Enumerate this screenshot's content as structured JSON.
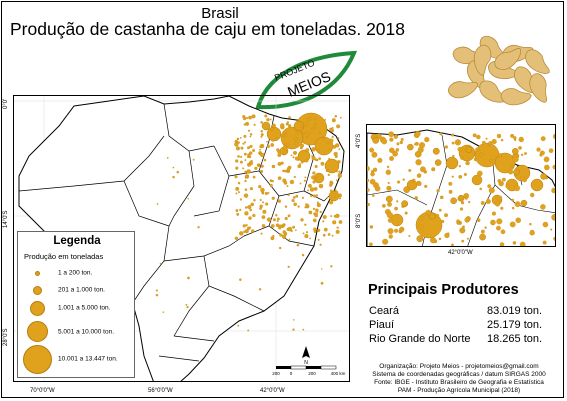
{
  "title": {
    "top": "Brasil",
    "main": "Produção de castanha de caju em toneladas. 2018"
  },
  "logo": {
    "line1": "PROJETO",
    "line2": "MEIOS"
  },
  "legend": {
    "title": "Legenda",
    "subtitle": "Produção em toneladas",
    "items": [
      {
        "label": "1 a 200 ton."
      },
      {
        "label": "201 a 1.000 ton."
      },
      {
        "label": "1.001 a 5.000 ton."
      },
      {
        "label": "5.001 a 10.000 ton."
      },
      {
        "label": "10.001 a 13.447 ton."
      }
    ]
  },
  "map_ticks": {
    "bottom": [
      "70°0'0\"W",
      "56°0'0\"W",
      "42°0'0\"W"
    ],
    "left": [
      "0°0'",
      "14°0'S",
      "28°0'S"
    ]
  },
  "inset_ticks": {
    "bottom": [
      "42°0'0\"W"
    ],
    "left": [
      "4°0'S",
      "8°0'S"
    ]
  },
  "scale_bar": {
    "labels": [
      "200",
      "0",
      "200",
      "400 km"
    ],
    "north": "N"
  },
  "producers": {
    "title": "Principais Produtores",
    "rows": [
      {
        "name": "Ceará",
        "value": "83.019 ton."
      },
      {
        "name": "Piauí",
        "value": "25.179 ton."
      },
      {
        "name": "Rio Grande do Norte",
        "value": "18.265 ton."
      }
    ]
  },
  "credits": [
    "Organização: Projeto Meios - projetomeios@gmail.com",
    "Sistema de coordenadas geográficas / datum SIRGAS 2000",
    "Fonte: IBGE - Instituto Brasileiro de Geografia e Estatística",
    "PAM - Produção Agrícola Municipal (2018)"
  ],
  "colors": {
    "bubble": "#E0A21D",
    "bubble_stroke": "#b57f0c",
    "logo_green": "#1f8a3a"
  }
}
